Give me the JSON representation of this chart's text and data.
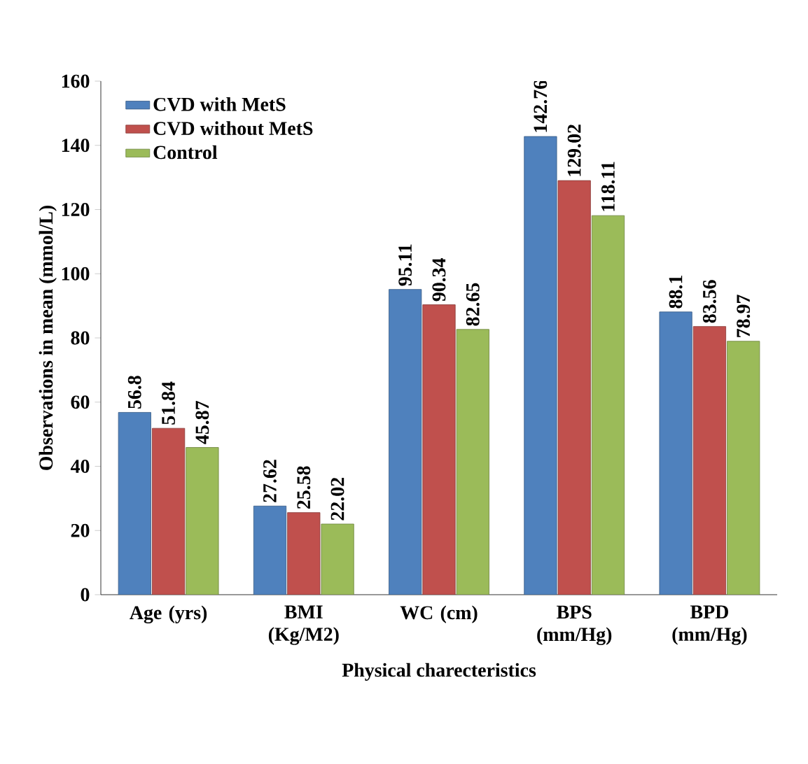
{
  "chart_data": {
    "type": "bar",
    "xlabel": "Physical charecteristics",
    "ylabel": "Observations in mean (mmol/L)",
    "categories": [
      "Age (yrs)",
      "BMI (Kg/M2)",
      "WC (cm)",
      "BPS (mm/Hg)",
      "BPD (mm/Hg)"
    ],
    "series": [
      {
        "name": "CVD with MetS",
        "color": "#4f81bd",
        "values": [
          56.8,
          27.62,
          95.11,
          142.76,
          88.1
        ]
      },
      {
        "name": "CVD without MetS",
        "color": "#c0504d",
        "values": [
          51.84,
          25.58,
          90.34,
          129.02,
          83.56
        ]
      },
      {
        "name": "Control",
        "color": "#9bbb59",
        "values": [
          45.87,
          22.02,
          82.65,
          118.11,
          78.97
        ]
      }
    ],
    "ylim": [
      0,
      160
    ],
    "yticks": [
      0,
      20,
      40,
      60,
      80,
      100,
      120,
      140,
      160
    ],
    "data_labels": true,
    "legend": "top left",
    "grid": false
  }
}
